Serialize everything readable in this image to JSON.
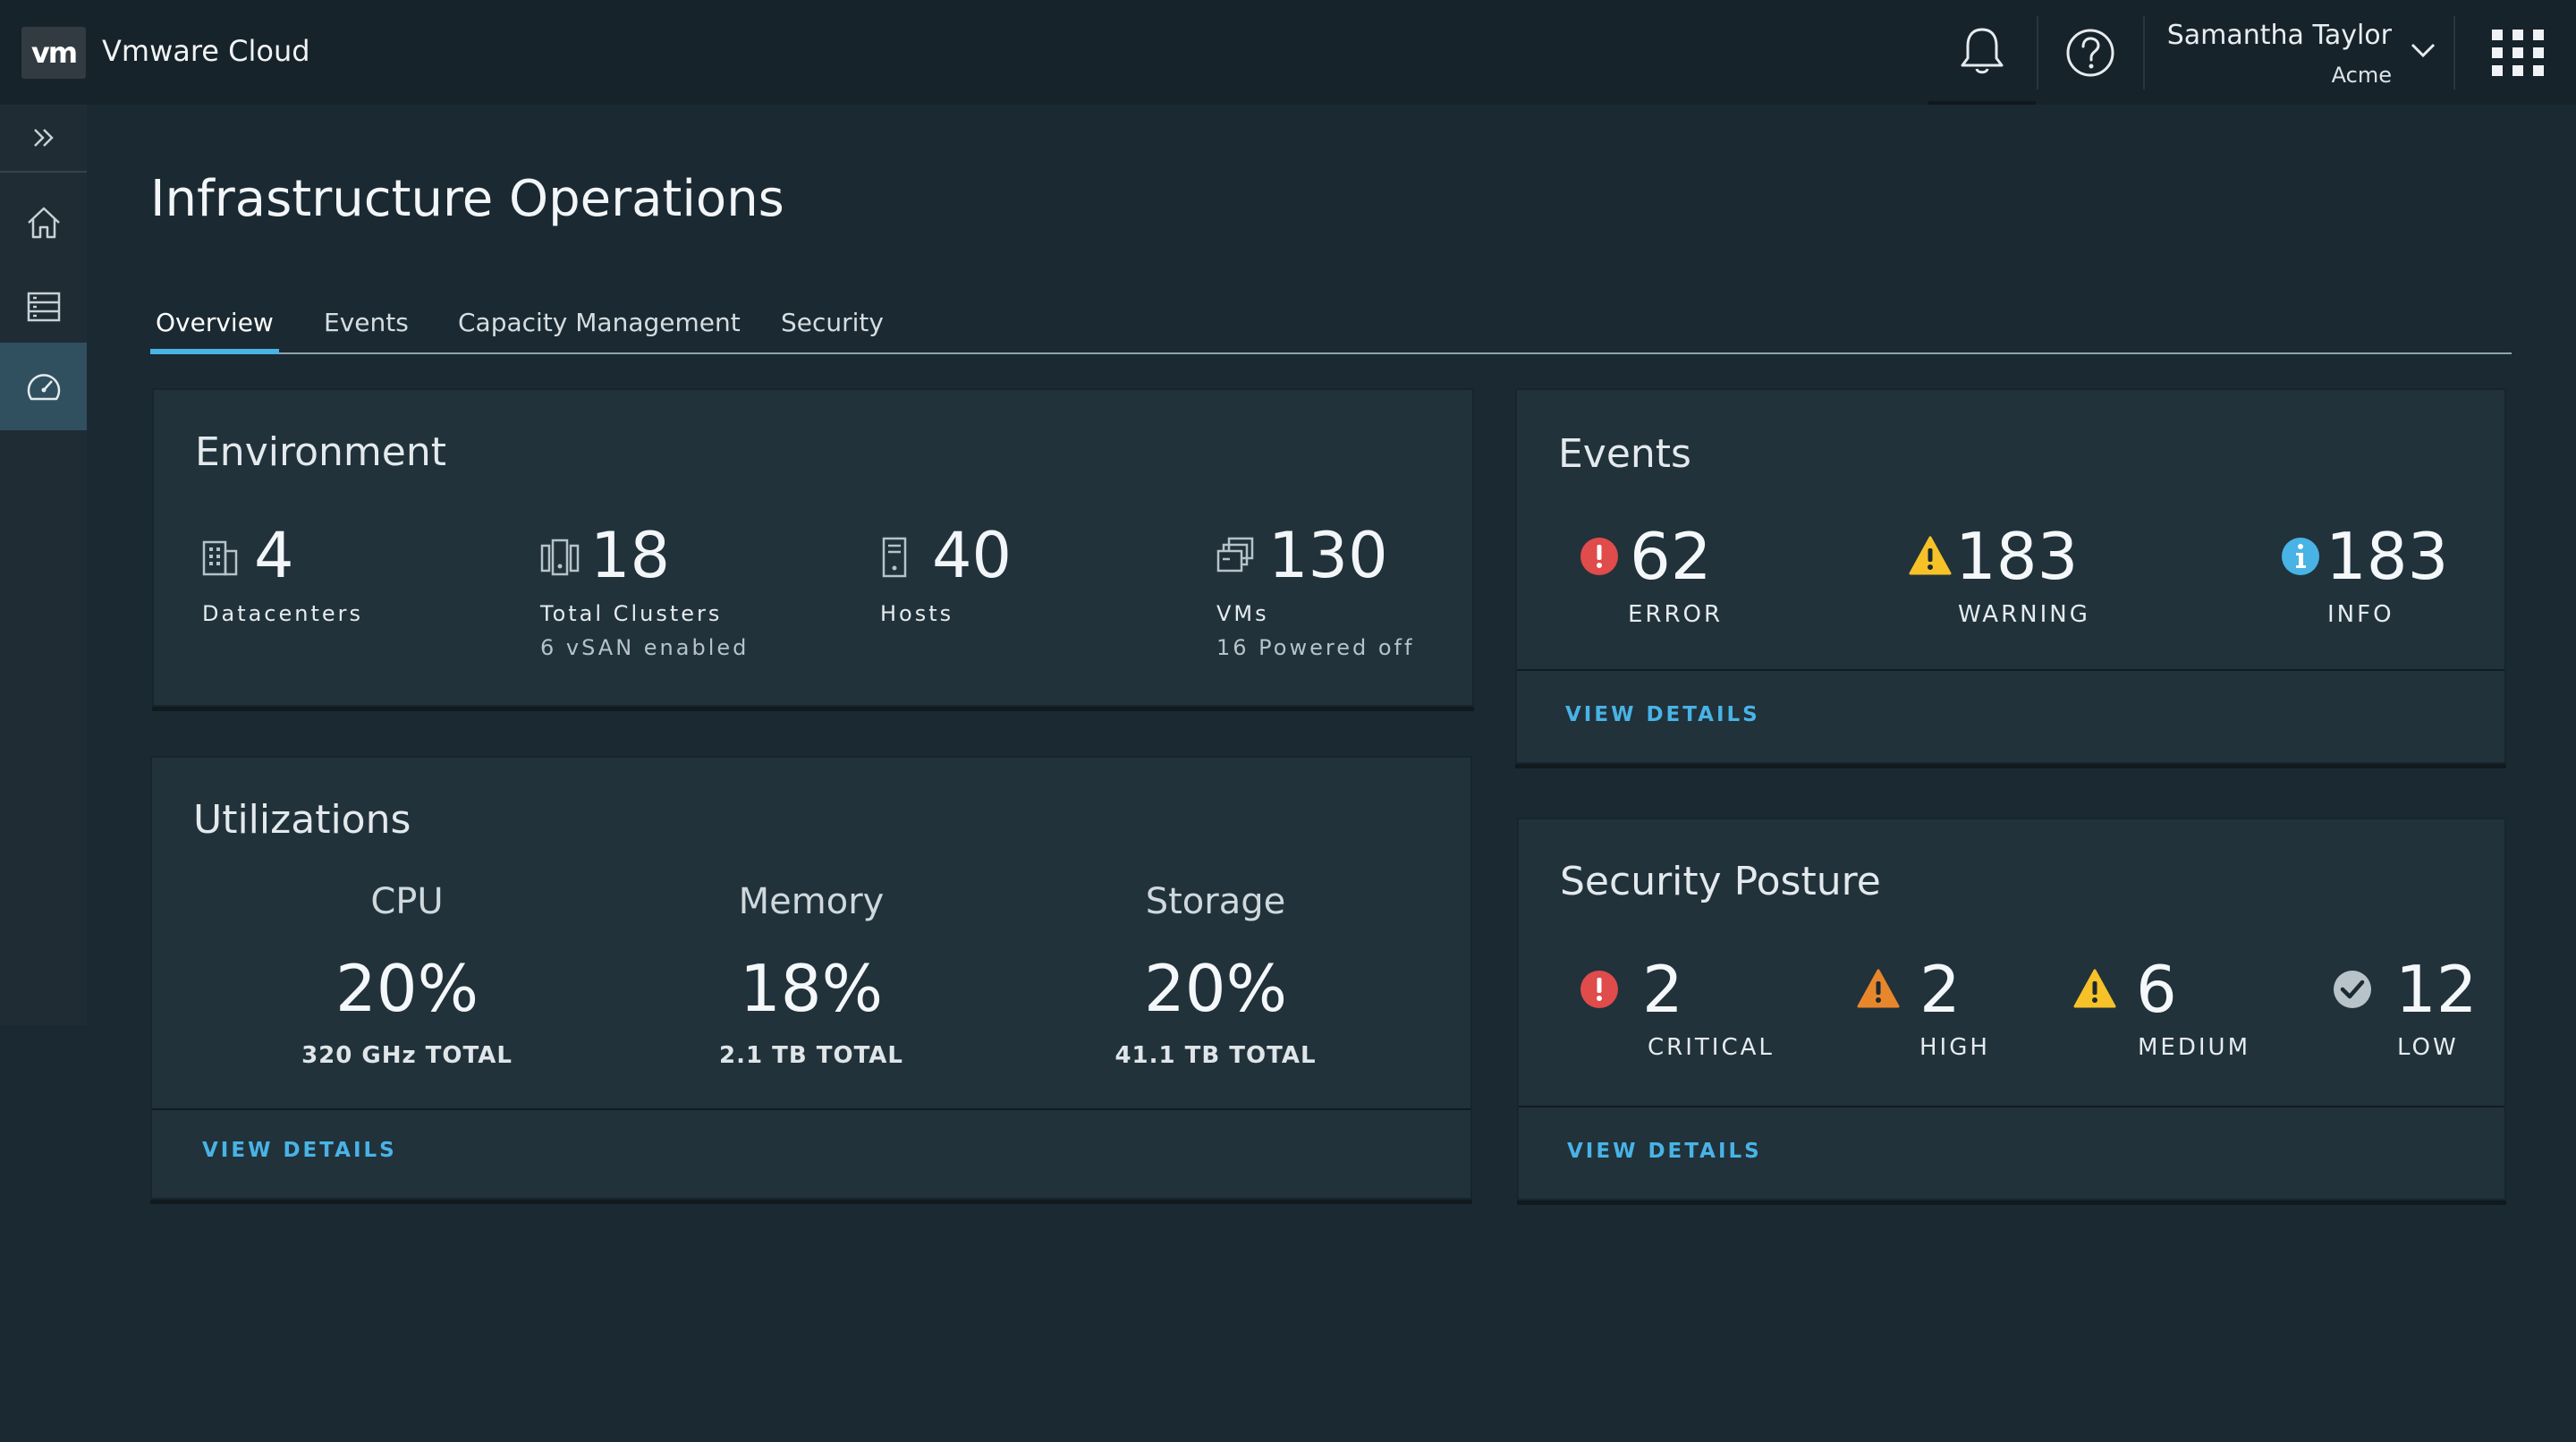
{
  "header": {
    "logo_text": "vm",
    "app_title": "Vmware Cloud",
    "user_name": "Samantha Taylor",
    "user_org": "Acme",
    "icons": [
      "bell-icon",
      "help-icon",
      "chevron-down-icon",
      "apps-grid-icon"
    ]
  },
  "sidebar": {
    "items": [
      {
        "name": "expand",
        "icon": "double-chevron-right-icon"
      },
      {
        "name": "home",
        "icon": "home-icon"
      },
      {
        "name": "inventory",
        "icon": "list-icon"
      },
      {
        "name": "operations",
        "icon": "dashboard-icon",
        "active": true
      }
    ]
  },
  "page": {
    "title": "Infrastructure Operations",
    "tabs": [
      {
        "label": "Overview",
        "active": true
      },
      {
        "label": "Events"
      },
      {
        "label": "Capacity Management"
      },
      {
        "label": "Security"
      }
    ]
  },
  "environment": {
    "title": "Environment",
    "stats": [
      {
        "value": "4",
        "label": "Datacenters",
        "sub": "",
        "icon": "building-icon"
      },
      {
        "value": "18",
        "label": "Total Clusters",
        "sub": "6 vSAN enabled",
        "icon": "cluster-icon"
      },
      {
        "value": "40",
        "label": "Hosts",
        "sub": "",
        "icon": "host-icon"
      },
      {
        "value": "130",
        "label": "VMs",
        "sub": "16 Powered off",
        "icon": "vm-icon"
      }
    ]
  },
  "utilizations": {
    "title": "Utilizations",
    "items": [
      {
        "name": "CPU",
        "percent": "20%",
        "total": "320 GHz TOTAL"
      },
      {
        "name": "Memory",
        "percent": "18%",
        "total": "2.1 TB TOTAL"
      },
      {
        "name": "Storage",
        "percent": "20%",
        "total": "41.1 TB TOTAL"
      }
    ],
    "view_details": "VIEW DETAILS"
  },
  "events": {
    "title": "Events",
    "stats": [
      {
        "value": "62",
        "label": "ERROR",
        "icon": "error-icon",
        "color": "#e04b4b"
      },
      {
        "value": "183",
        "label": "WARNING",
        "icon": "warning-icon",
        "color": "#f6c228"
      },
      {
        "value": "183",
        "label": "INFO",
        "icon": "info-icon",
        "color": "#49b3e6"
      }
    ],
    "view_details": "VIEW DETAILS"
  },
  "security": {
    "title": "Security Posture",
    "stats": [
      {
        "value": "2",
        "label": "CRITICAL",
        "icon": "critical-icon",
        "color": "#e04b4b"
      },
      {
        "value": "2",
        "label": "HIGH",
        "icon": "high-warning-icon",
        "color": "#e8862b"
      },
      {
        "value": "6",
        "label": "MEDIUM",
        "icon": "medium-warning-icon",
        "color": "#f6c228"
      },
      {
        "value": "12",
        "label": "LOW",
        "icon": "check-icon",
        "color": "#b7c3c9"
      }
    ],
    "view_details": "VIEW DETAILS"
  },
  "colors": {
    "accent": "#49b3e6",
    "background": "#1b2a32",
    "card": "#21323b",
    "header": "#17232a"
  }
}
